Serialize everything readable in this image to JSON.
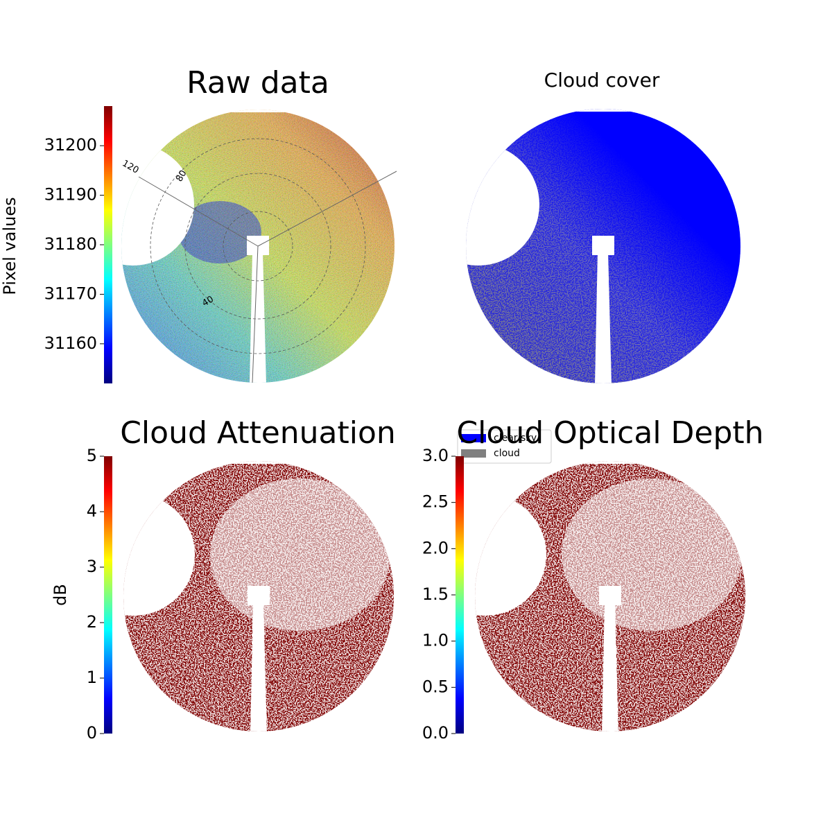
{
  "chart_data": [
    {
      "type": "image",
      "title": "Raw data",
      "colorbar_label": "Pixel values",
      "colormap": "jet",
      "ylim": [
        31152,
        31208
      ],
      "yticks": [
        31160,
        31170,
        31180,
        31190,
        31200
      ],
      "annotations": [
        "120",
        "80",
        "40"
      ]
    },
    {
      "type": "image",
      "title": "Cloud cover",
      "legend": [
        {
          "name": "clear sky",
          "color": "#0000ff"
        },
        {
          "name": "cloud",
          "color": "#808080"
        }
      ]
    },
    {
      "type": "image",
      "title": "Cloud Attenuation",
      "colorbar_label": "dB",
      "colormap": "jet",
      "ylim": [
        0,
        5
      ],
      "yticks": [
        0,
        1,
        2,
        3,
        4,
        5
      ]
    },
    {
      "type": "image",
      "title": "Cloud Optical Depth",
      "colormap": "jet",
      "ylim": [
        0,
        3
      ],
      "yticks": [
        {
          "value": 0,
          "label": "0.0"
        },
        {
          "value": 0.5,
          "label": "0.5"
        },
        {
          "value": 1,
          "label": "1.0"
        },
        {
          "value": 1.5,
          "label": "1.5"
        },
        {
          "value": 2,
          "label": "2.0"
        },
        {
          "value": 2.5,
          "label": "2.5"
        },
        {
          "value": 3,
          "label": "3.0"
        }
      ]
    }
  ]
}
